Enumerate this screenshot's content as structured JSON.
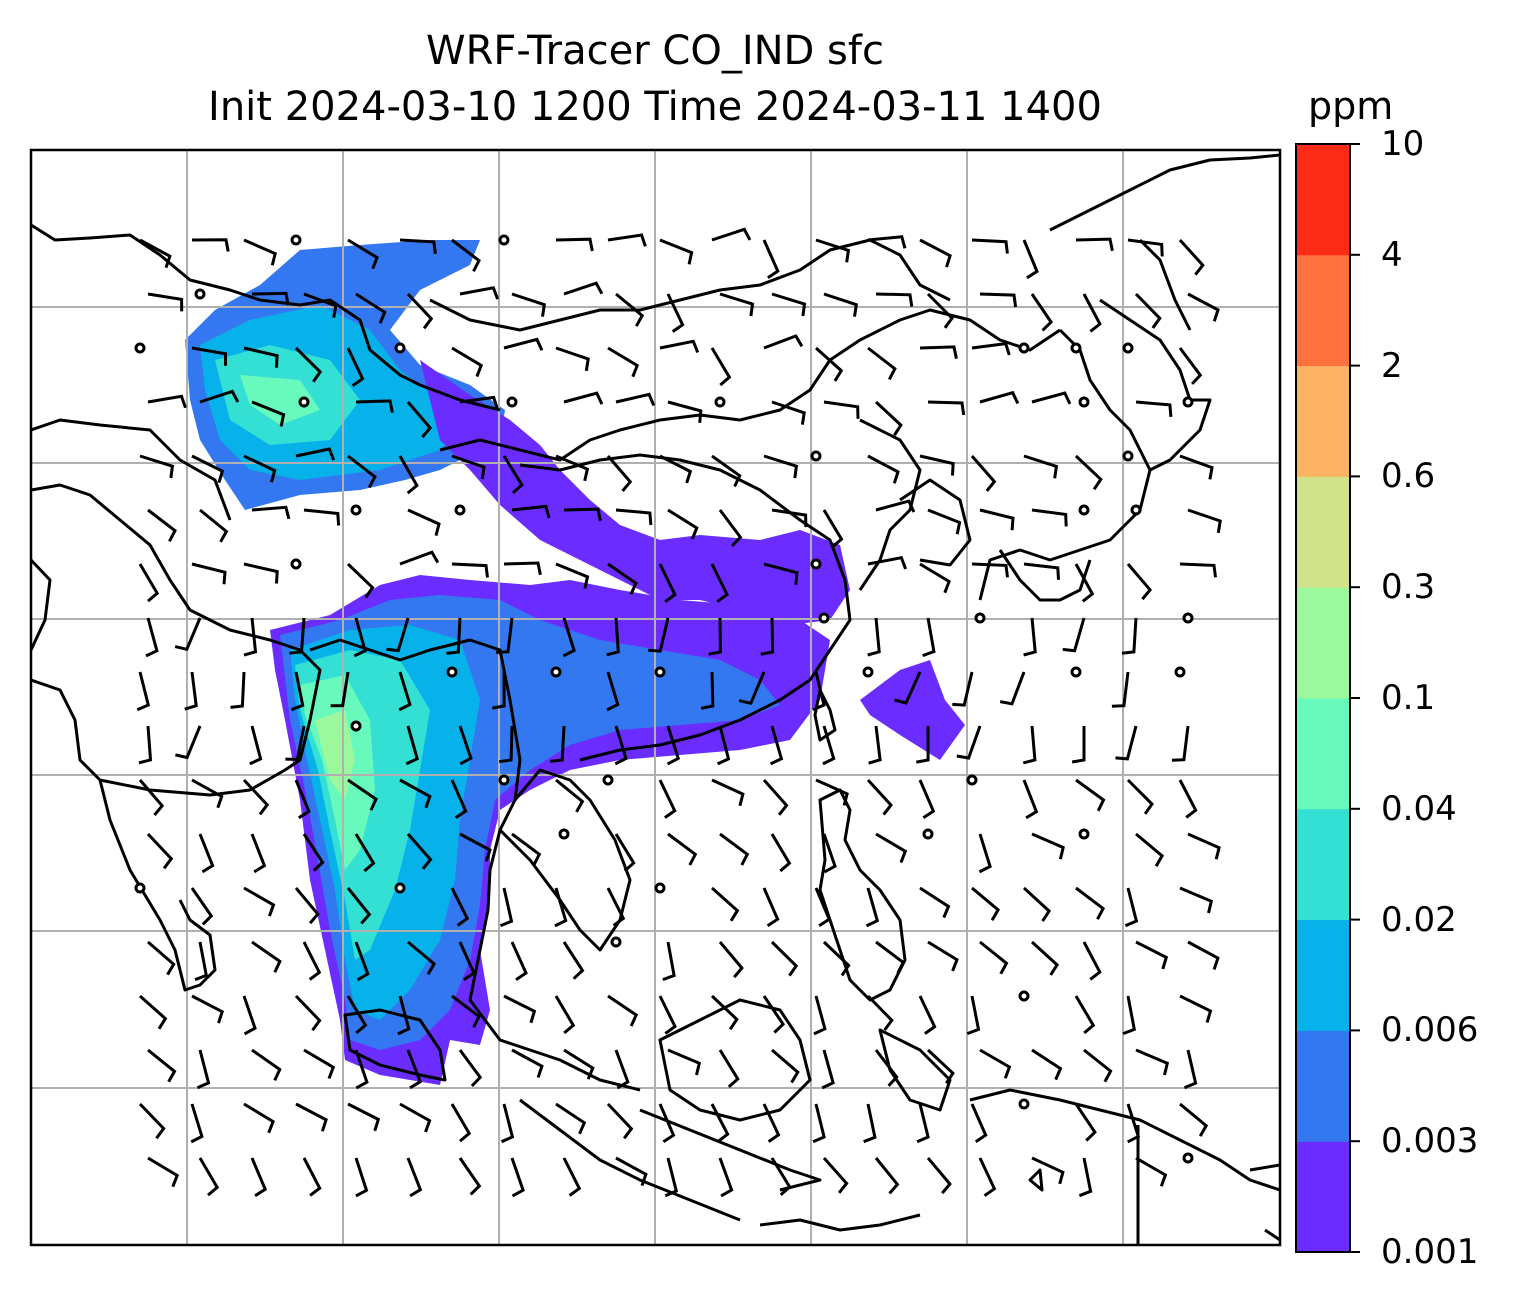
{
  "title": {
    "line1": "WRF-Tracer CO_IND sfc",
    "line2": "Init 2024-03-10 1200 Time 2024-03-11 1400"
  },
  "colorbar": {
    "unit": "ppm",
    "levels": [
      "0.001",
      "0.003",
      "0.006",
      "0.02",
      "0.04",
      "0.1",
      "0.3",
      "0.6",
      "2",
      "4",
      "10"
    ],
    "colors": [
      "#6a2cff",
      "#3378f0",
      "#07b2ea",
      "#34dfd3",
      "#68f9bd",
      "#9cf89c",
      "#d0e28a",
      "#feb263",
      "#ff7240",
      "#fb2b17"
    ]
  },
  "map": {
    "gridlines": true,
    "features": [
      "coastlines",
      "country-borders",
      "wind-barbs",
      "calm-wind-circles",
      "tracer-concentration-fill"
    ]
  }
}
